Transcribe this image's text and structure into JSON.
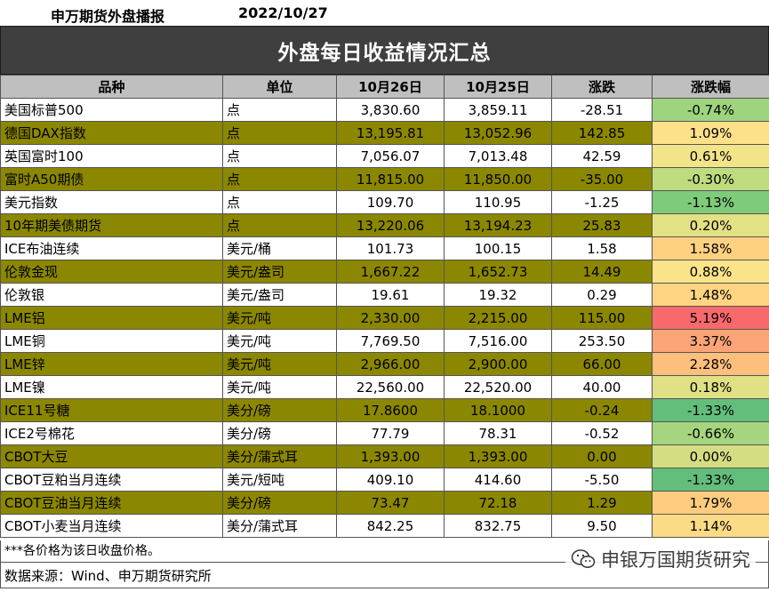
{
  "header": {
    "name": "申万期货外盘播报",
    "date": "2022/10/27"
  },
  "banner": {
    "title": "外盘每日收益情况汇总"
  },
  "table": {
    "columns": [
      "品种",
      "单位",
      "10月26日",
      "10月25日",
      "涨跌",
      "涨跌幅"
    ],
    "rows": [
      {
        "name": "美国标普500",
        "unit": "点",
        "d26": "3,830.60",
        "d25": "3,859.11",
        "chg": "-28.51",
        "pct": "-0.74%",
        "pct_value": -0.74,
        "color": "#9fd47f"
      },
      {
        "name": "德国DAX指数",
        "unit": "点",
        "d26": "13,195.81",
        "d25": "13,052.96",
        "chg": "142.85",
        "pct": "1.09%",
        "pct_value": 1.09,
        "color": "#fde08a"
      },
      {
        "name": "英国富时100",
        "unit": "点",
        "d26": "7,056.07",
        "d25": "7,013.48",
        "chg": "42.59",
        "pct": "0.61%",
        "pct_value": 0.61,
        "color": "#f3e48a"
      },
      {
        "name": "富时A50期债",
        "unit": "点",
        "d26": "11,815.00",
        "d25": "11,850.00",
        "chg": "-35.00",
        "pct": "-0.30%",
        "pct_value": -0.3,
        "color": "#bfdb80"
      },
      {
        "name": "美元指数",
        "unit": "点",
        "d26": "109.70",
        "d25": "110.95",
        "chg": "-1.25",
        "pct": "-1.13%",
        "pct_value": -1.13,
        "color": "#7ecb7a"
      },
      {
        "name": "10年期美债期货",
        "unit": "点",
        "d26": "13,220.06",
        "d25": "13,194.23",
        "chg": "25.83",
        "pct": "0.20%",
        "pct_value": 0.2,
        "color": "#e2e184"
      },
      {
        "name": "ICE布油连续",
        "unit": "美元/桶",
        "d26": "101.73",
        "d25": "100.15",
        "chg": "1.58",
        "pct": "1.58%",
        "pct_value": 1.58,
        "color": "#fdd180"
      },
      {
        "name": "伦敦金现",
        "unit": "美元/盎司",
        "d26": "1,667.22",
        "d25": "1,652.73",
        "chg": "14.49",
        "pct": "0.88%",
        "pct_value": 0.88,
        "color": "#fbe38a"
      },
      {
        "name": "伦敦银",
        "unit": "美元/盎司",
        "d26": "19.61",
        "d25": "19.32",
        "chg": "0.29",
        "pct": "1.48%",
        "pct_value": 1.48,
        "color": "#fdd482"
      },
      {
        "name": "LME铝",
        "unit": "美元/吨",
        "d26": "2,330.00",
        "d25": "2,215.00",
        "chg": "115.00",
        "pct": "5.19%",
        "pct_value": 5.19,
        "color": "#f8696b"
      },
      {
        "name": "LME铜",
        "unit": "美元/吨",
        "d26": "7,769.50",
        "d25": "7,516.00",
        "chg": "253.50",
        "pct": "3.37%",
        "pct_value": 3.37,
        "color": "#fba477"
      },
      {
        "name": "LME锌",
        "unit": "美元/吨",
        "d26": "2,966.00",
        "d25": "2,900.00",
        "chg": "66.00",
        "pct": "2.28%",
        "pct_value": 2.28,
        "color": "#fdbf7c"
      },
      {
        "name": "LME镍",
        "unit": "美元/吨",
        "d26": "22,560.00",
        "d25": "22,520.00",
        "chg": "40.00",
        "pct": "0.18%",
        "pct_value": 0.18,
        "color": "#e0e084"
      },
      {
        "name": "ICE11号糖",
        "unit": "美分/磅",
        "d26": "17.8600",
        "d25": "18.1000",
        "chg": "-0.24",
        "pct": "-1.33%",
        "pct_value": -1.33,
        "color": "#63be7b"
      },
      {
        "name": "ICE2号棉花",
        "unit": "美分/磅",
        "d26": "77.79",
        "d25": "78.31",
        "chg": "-0.52",
        "pct": "-0.66%",
        "pct_value": -0.66,
        "color": "#a5d67f"
      },
      {
        "name": "CBOT大豆",
        "unit": "美分/蒲式耳",
        "d26": "1,393.00",
        "d25": "1,393.00",
        "chg": "0.00",
        "pct": "0.00%",
        "pct_value": 0.0,
        "color": "#d4dd82"
      },
      {
        "name": "CBOT豆粕当月连续",
        "unit": "美元/短吨",
        "d26": "409.10",
        "d25": "414.60",
        "chg": "-5.50",
        "pct": "-1.33%",
        "pct_value": -1.33,
        "color": "#63be7b"
      },
      {
        "name": "CBOT豆油当月连续",
        "unit": "美分/磅",
        "d26": "73.47",
        "d25": "72.18",
        "chg": "1.29",
        "pct": "1.79%",
        "pct_value": 1.79,
        "color": "#fdcc7f"
      },
      {
        "name": "CBOT小麦当月连续",
        "unit": "美分/蒲式耳",
        "d26": "842.25",
        "d25": "832.75",
        "chg": "9.50",
        "pct": "1.14%",
        "pct_value": 1.14,
        "color": "#fcdb86"
      }
    ]
  },
  "footer": {
    "note": "***各价格为该日收盘价格。",
    "source": "数据来源：Wind、申万期货研究所"
  },
  "watermark": {
    "icon": "wechat-icon",
    "text": "申银万国期货研究"
  }
}
